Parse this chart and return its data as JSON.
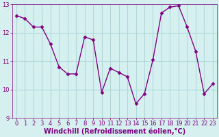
{
  "x": [
    0,
    1,
    2,
    3,
    4,
    5,
    6,
    7,
    8,
    9,
    10,
    11,
    12,
    13,
    14,
    15,
    16,
    17,
    18,
    19,
    20,
    21,
    22,
    23
  ],
  "y": [
    12.6,
    12.5,
    12.2,
    12.2,
    11.6,
    10.8,
    10.55,
    10.55,
    11.85,
    11.75,
    9.9,
    10.75,
    10.6,
    10.45,
    9.5,
    9.85,
    11.05,
    12.7,
    12.9,
    12.95,
    12.2,
    11.35,
    9.85,
    10.2
  ],
  "line_color": "#800080",
  "marker": "D",
  "markersize": 2.5,
  "linewidth": 1.0,
  "background_color": "#d6f0f0",
  "grid_color": "#b0d8d8",
  "xlabel": "Windchill (Refroidissement éolien,°C)",
  "xlabel_color": "#800080",
  "xlabel_fontsize": 7,
  "tick_color": "#800080",
  "tick_fontsize": 6,
  "ylim": [
    9,
    13
  ],
  "xlim": [
    -0.5,
    23.5
  ],
  "yticks": [
    9,
    10,
    11,
    12,
    13
  ],
  "xticks": [
    0,
    1,
    2,
    3,
    4,
    5,
    6,
    7,
    8,
    9,
    10,
    11,
    12,
    13,
    14,
    15,
    16,
    17,
    18,
    19,
    20,
    21,
    22,
    23
  ]
}
